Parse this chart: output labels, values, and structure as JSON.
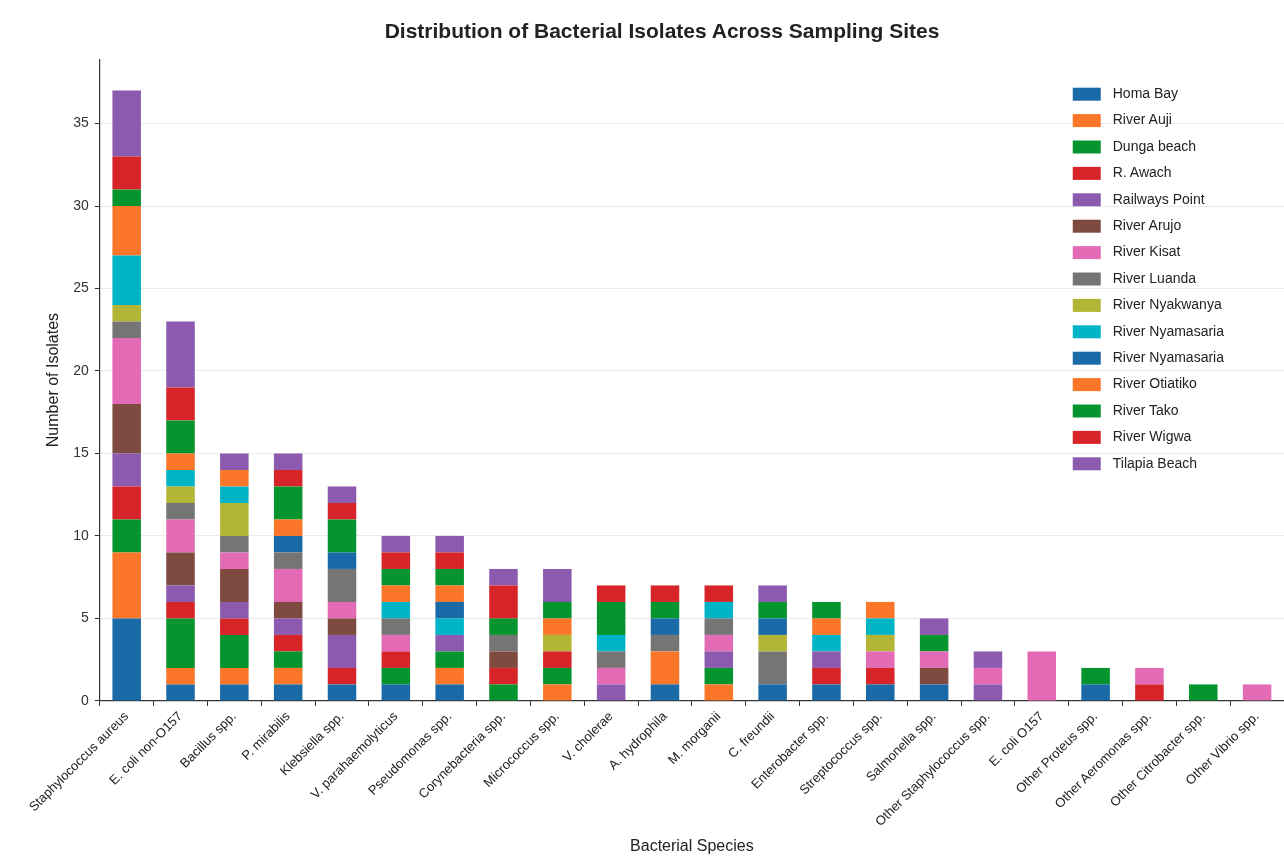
{
  "chart_data": {
    "type": "bar",
    "title": "Distribution of Bacterial Isolates Across Sampling Sites",
    "xlabel": "Bacterial Species",
    "ylabel": "Number of Isolates",
    "categories": [
      "Staphylococcus aureus",
      "E. coli non-O157",
      "Bacillus spp.",
      "P. mirabilis",
      "Klebsiella spp.",
      "V. parahaemolyticus",
      "Pseudomonas spp.",
      "Corynebacteria spp.",
      "Micrococcus spp.",
      "V. cholerae",
      "A. hydrophila",
      "M. morganii",
      "C. freundii",
      "Enterobacter spp.",
      "Streptococcus spp.",
      "Salmonella spp.",
      "Other Staphylococcus spp.",
      "E. coli O157",
      "Other Proteus spp.",
      "Other Aeromonas spp.",
      "Other Citrobacter spp.",
      "Other Vibrio spp."
    ],
    "stacked": true,
    "ylim": [
      0,
      38.9
    ],
    "yticks": [
      0,
      5,
      10,
      15,
      20,
      25,
      30,
      35
    ],
    "grid": "y",
    "legend": "top right",
    "series": [
      {
        "name": "Homa Bay",
        "color": "#1a6aa8",
        "values": [
          5,
          1,
          1,
          1,
          1,
          1,
          1,
          0,
          0,
          0,
          1,
          0,
          1,
          1,
          1,
          1,
          0,
          0,
          1,
          0,
          0,
          0
        ]
      },
      {
        "name": "River Auji",
        "color": "#fb7628",
        "values": [
          4,
          1,
          1,
          1,
          0,
          0,
          1,
          0,
          1,
          0,
          2,
          1,
          0,
          0,
          0,
          0,
          0,
          0,
          0,
          0,
          0,
          0
        ]
      },
      {
        "name": "Dunga beach",
        "color": "#06942f",
        "values": [
          2,
          3,
          2,
          1,
          0,
          1,
          1,
          1,
          1,
          0,
          0,
          1,
          0,
          0,
          0,
          0,
          0,
          0,
          1,
          0,
          1,
          0
        ]
      },
      {
        "name": "R. Awach",
        "color": "#d62429",
        "values": [
          2,
          1,
          1,
          1,
          1,
          1,
          0,
          1,
          1,
          0,
          0,
          0,
          0,
          1,
          1,
          0,
          0,
          0,
          0,
          1,
          0,
          0
        ]
      },
      {
        "name": "Railways Point",
        "color": "#8c5bb0",
        "values": [
          2,
          1,
          1,
          1,
          2,
          0,
          1,
          0,
          0,
          1,
          0,
          1,
          0,
          1,
          0,
          0,
          1,
          0,
          0,
          0,
          0,
          0
        ]
      },
      {
        "name": "River Arujo",
        "color": "#7f4b41",
        "values": [
          3,
          2,
          2,
          1,
          1,
          0,
          0,
          1,
          0,
          0,
          0,
          0,
          0,
          0,
          0,
          1,
          0,
          0,
          0,
          0,
          0,
          0
        ]
      },
      {
        "name": "River Kisat",
        "color": "#e36bb5",
        "values": [
          4,
          2,
          1,
          2,
          1,
          1,
          0,
          0,
          0,
          1,
          0,
          1,
          0,
          0,
          1,
          1,
          1,
          3,
          0,
          1,
          0,
          1
        ]
      },
      {
        "name": "River Luanda",
        "color": "#757575",
        "values": [
          1,
          1,
          1,
          1,
          2,
          1,
          0,
          1,
          0,
          1,
          1,
          1,
          2,
          0,
          0,
          0,
          0,
          0,
          0,
          0,
          0,
          0
        ]
      },
      {
        "name": "River Nyakwanya",
        "color": "#b3b534",
        "values": [
          1,
          1,
          2,
          0,
          0,
          0,
          0,
          0,
          1,
          0,
          0,
          0,
          1,
          0,
          1,
          0,
          0,
          0,
          0,
          0,
          0,
          0
        ]
      },
      {
        "name": "River Nyamasaria",
        "color": "#00b4c8",
        "values": [
          3,
          1,
          1,
          0,
          0,
          1,
          1,
          0,
          0,
          1,
          0,
          1,
          0,
          1,
          1,
          0,
          0,
          0,
          0,
          0,
          0,
          0
        ]
      },
      {
        "name": "River Nyamasaria",
        "color": "#1a6aa8",
        "values": [
          0,
          0,
          0,
          1,
          1,
          0,
          1,
          0,
          0,
          0,
          1,
          0,
          1,
          0,
          0,
          0,
          0,
          0,
          0,
          0,
          0,
          0
        ]
      },
      {
        "name": "River Otiatiko",
        "color": "#fb7628",
        "values": [
          3,
          1,
          1,
          1,
          0,
          1,
          1,
          0,
          1,
          0,
          0,
          0,
          0,
          1,
          1,
          0,
          0,
          0,
          0,
          0,
          0,
          0
        ]
      },
      {
        "name": "River Tako",
        "color": "#06942f",
        "values": [
          1,
          2,
          0,
          2,
          2,
          1,
          1,
          1,
          1,
          2,
          1,
          0,
          1,
          1,
          0,
          1,
          0,
          0,
          0,
          0,
          0,
          0
        ]
      },
      {
        "name": "River Wigwa",
        "color": "#d62429",
        "values": [
          2,
          2,
          0,
          1,
          1,
          1,
          1,
          2,
          0,
          1,
          1,
          1,
          0,
          0,
          0,
          0,
          0,
          0,
          0,
          0,
          0,
          0
        ]
      },
      {
        "name": "Tilapia Beach",
        "color": "#8c5bb0",
        "values": [
          4,
          4,
          1,
          1,
          1,
          1,
          1,
          1,
          2,
          0,
          0,
          0,
          1,
          0,
          0,
          1,
          1,
          0,
          0,
          0,
          0,
          0
        ]
      }
    ]
  }
}
